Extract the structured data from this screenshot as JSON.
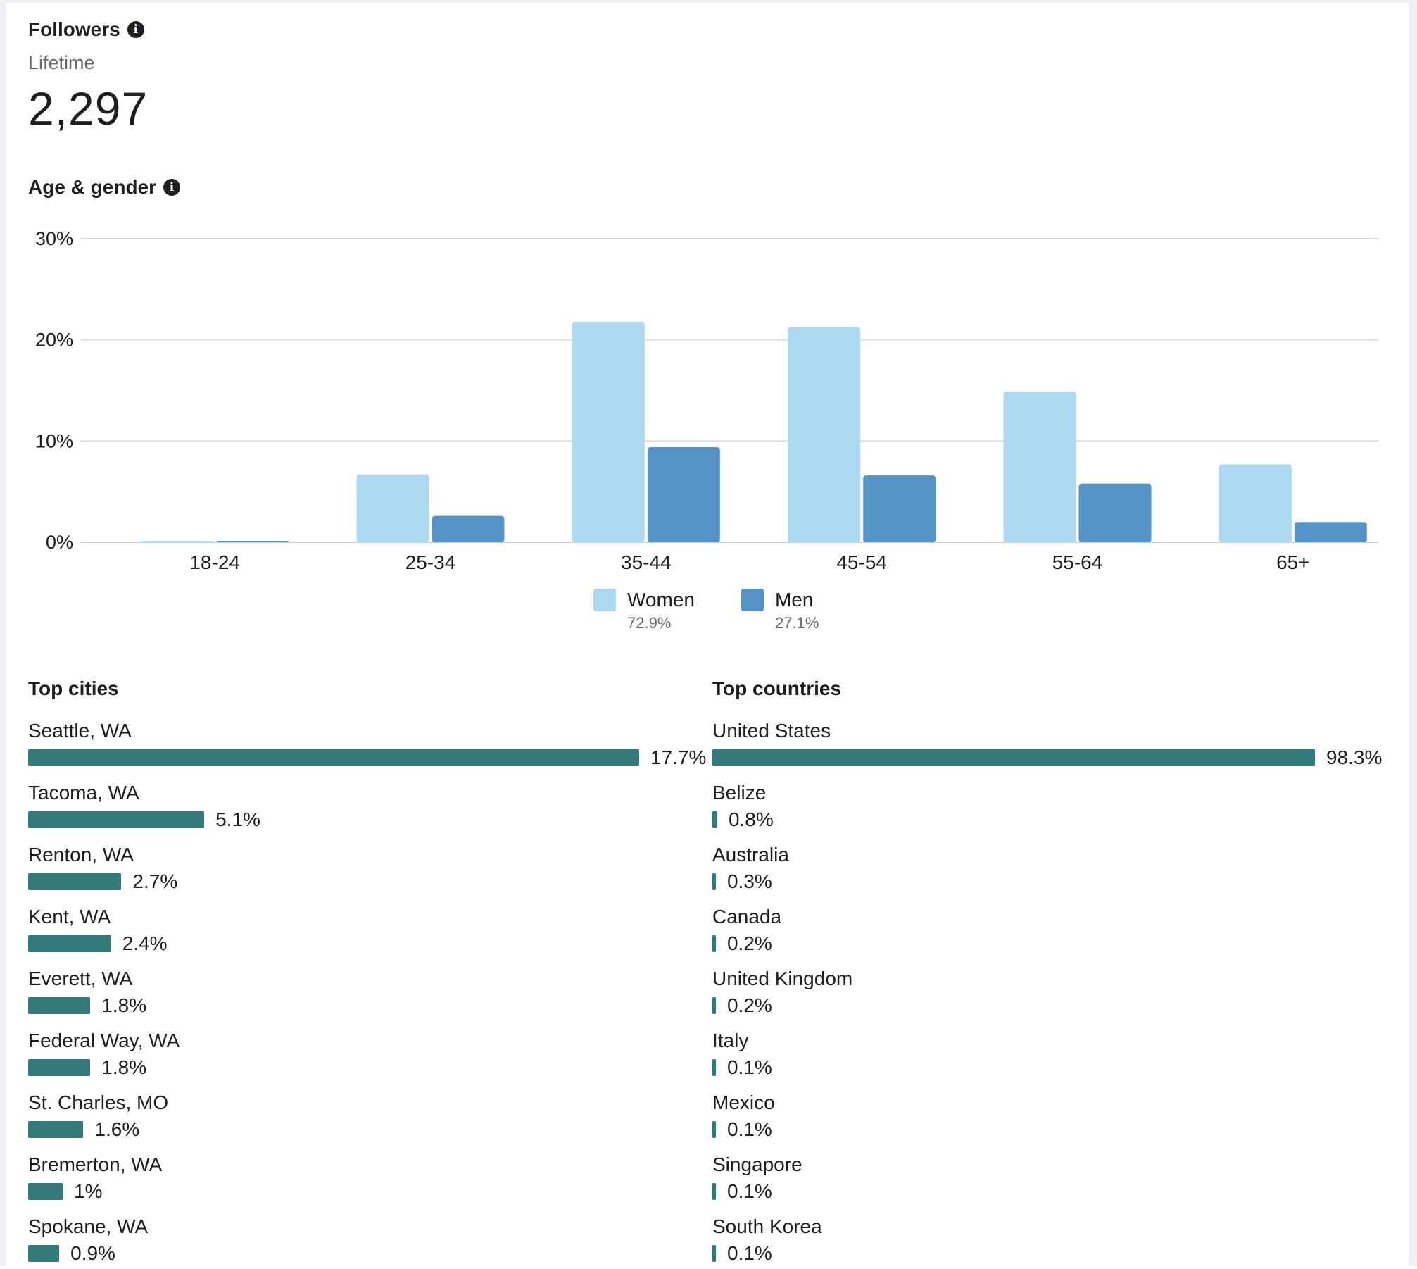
{
  "followers": {
    "title": "Followers",
    "period": "Lifetime",
    "count": "2,297"
  },
  "age_gender": {
    "title": "Age & gender",
    "legend": [
      {
        "name": "Women",
        "pct": "72.9%"
      },
      {
        "name": "Men",
        "pct": "27.1%"
      }
    ]
  },
  "chart_data": {
    "type": "bar",
    "categories": [
      "18-24",
      "25-34",
      "35-44",
      "45-54",
      "55-64",
      "65+"
    ],
    "series": [
      {
        "name": "Women",
        "values": [
          0.1,
          6.7,
          21.8,
          21.3,
          14.9,
          7.7
        ]
      },
      {
        "name": "Men",
        "values": [
          0.1,
          2.6,
          9.4,
          6.6,
          5.8,
          2.0
        ]
      }
    ],
    "ylim": [
      0,
      30
    ],
    "yticks": [
      "0%",
      "10%",
      "20%",
      "30%"
    ],
    "ytick_values": [
      0,
      10,
      20,
      30
    ],
    "grid": true,
    "legend_position": "bottom",
    "colors": {
      "Women": "#acd8f2",
      "Men": "#5592c6"
    }
  },
  "top_cities": {
    "title": "Top cities",
    "max": 17.7,
    "items": [
      {
        "label": "Seattle, WA",
        "value": 17.7,
        "display": "17.7%"
      },
      {
        "label": "Tacoma, WA",
        "value": 5.1,
        "display": "5.1%"
      },
      {
        "label": "Renton, WA",
        "value": 2.7,
        "display": "2.7%"
      },
      {
        "label": "Kent, WA",
        "value": 2.4,
        "display": "2.4%"
      },
      {
        "label": "Everett, WA",
        "value": 1.8,
        "display": "1.8%"
      },
      {
        "label": "Federal Way, WA",
        "value": 1.8,
        "display": "1.8%"
      },
      {
        "label": "St. Charles, MO",
        "value": 1.6,
        "display": "1.6%"
      },
      {
        "label": "Bremerton, WA",
        "value": 1.0,
        "display": "1%"
      },
      {
        "label": "Spokane, WA",
        "value": 0.9,
        "display": "0.9%"
      }
    ]
  },
  "top_countries": {
    "title": "Top countries",
    "max": 98.3,
    "items": [
      {
        "label": "United States",
        "value": 98.3,
        "display": "98.3%"
      },
      {
        "label": "Belize",
        "value": 0.8,
        "display": "0.8%"
      },
      {
        "label": "Australia",
        "value": 0.3,
        "display": "0.3%"
      },
      {
        "label": "Canada",
        "value": 0.2,
        "display": "0.2%"
      },
      {
        "label": "United Kingdom",
        "value": 0.2,
        "display": "0.2%"
      },
      {
        "label": "Italy",
        "value": 0.1,
        "display": "0.1%"
      },
      {
        "label": "Mexico",
        "value": 0.1,
        "display": "0.1%"
      },
      {
        "label": "Singapore",
        "value": 0.1,
        "display": "0.1%"
      },
      {
        "label": "South Korea",
        "value": 0.1,
        "display": "0.1%"
      }
    ]
  },
  "colors": {
    "bar_fill": "#357a7b",
    "text": "#1c1e21",
    "muted": "#65676b",
    "grid": "#dadde1"
  }
}
